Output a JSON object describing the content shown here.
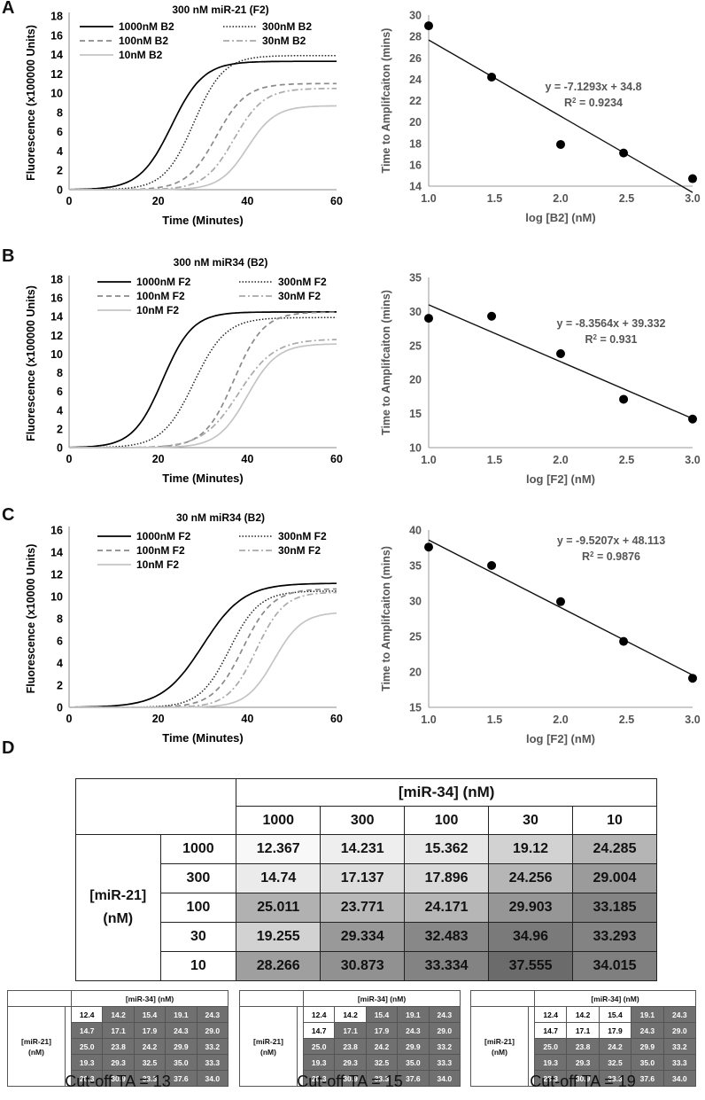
{
  "panels": {
    "A": {
      "letter": "A",
      "curve": {
        "title": "300 nM miR-21 (F2)",
        "ylabel": "Fluorescence (x100000 Units)",
        "xlabel": "Time (Minutes)",
        "yticks": [
          "0",
          "2",
          "4",
          "6",
          "8",
          "10",
          "12",
          "14",
          "16",
          "18"
        ],
        "xticks": [
          "0",
          "20",
          "40",
          "60"
        ],
        "legend": [
          "1000nM B2",
          "300nM B2",
          "100nM B2",
          "30nM B2",
          "10nM B2"
        ]
      },
      "scatter": {
        "ylabel": "Time to Amplifcaiton (mins)",
        "xlabel": "log [B2] (nM)",
        "yticks": [
          "14",
          "16",
          "18",
          "20",
          "22",
          "24",
          "26",
          "28",
          "30"
        ],
        "xticks": [
          "1.0",
          "1.5",
          "2.0",
          "2.5",
          "3.0"
        ],
        "equation": "y = -7.1293x + 34.8",
        "r2_label": "R",
        "r2_value": " = 0.9234"
      }
    },
    "B": {
      "letter": "B",
      "curve": {
        "title": "300 nM miR34 (B2)",
        "ylabel": "Fluorescence (x100000 Units)",
        "xlabel": "Time (Minutes)",
        "yticks": [
          "0",
          "2",
          "4",
          "6",
          "8",
          "10",
          "12",
          "14",
          "16",
          "18"
        ],
        "xticks": [
          "0",
          "20",
          "40",
          "60"
        ],
        "legend": [
          "1000nM F2",
          "300nM F2",
          "100nM F2",
          "30nM F2",
          "10nM F2"
        ]
      },
      "scatter": {
        "ylabel": "Time to Amplifcaiton (mins)",
        "xlabel": "log [F2] (nM)",
        "yticks": [
          "10",
          "15",
          "20",
          "25",
          "30",
          "35"
        ],
        "xticks": [
          "1.0",
          "1.5",
          "2.0",
          "2.5",
          "3.0"
        ],
        "equation": "y = -8.3564x + 39.332",
        "r2_label": "R",
        "r2_value": " = 0.931"
      }
    },
    "C": {
      "letter": "C",
      "curve": {
        "title": "30 nM miR34 (B2)",
        "ylabel": "Fluorescence (x10000 Units)",
        "xlabel": "Time (Minutes)",
        "yticks": [
          "0",
          "2",
          "4",
          "6",
          "8",
          "10",
          "12",
          "14",
          "16"
        ],
        "xticks": [
          "0",
          "20",
          "40",
          "60"
        ],
        "legend": [
          "1000nM F2",
          "300nM F2",
          "100nM F2",
          "30nM F2",
          "10nM F2"
        ]
      },
      "scatter": {
        "ylabel": "Time to Amplifcaiton (mins)",
        "xlabel": "log [F2] (nM)",
        "yticks": [
          "15",
          "20",
          "25",
          "30",
          "35",
          "40"
        ],
        "xticks": [
          "1.0",
          "1.5",
          "2.0",
          "2.5",
          "3.0"
        ],
        "equation": "y = -9.5207x + 48.113",
        "r2_label": "R",
        "r2_value": " = 0.9876"
      }
    },
    "D": {
      "letter": "D",
      "col_header": "[miR-34] (nM)",
      "row_header": "[miR-21] (nM)",
      "row_header_line1": "[miR-21]",
      "row_header_line2": "(nM)",
      "cols": [
        "1000",
        "300",
        "100",
        "30",
        "10"
      ],
      "rows": [
        "1000",
        "300",
        "100",
        "30",
        "10"
      ],
      "cells": [
        [
          "12.367",
          "14.231",
          "15.362",
          "19.12",
          "24.285"
        ],
        [
          "14.74",
          "17.137",
          "17.896",
          "24.256",
          "29.004"
        ],
        [
          "25.011",
          "23.771",
          "24.171",
          "29.903",
          "33.185"
        ],
        [
          "19.255",
          "29.334",
          "32.483",
          "34.96",
          "33.293"
        ],
        [
          "28.266",
          "30.873",
          "33.334",
          "37.555",
          "34.015"
        ]
      ],
      "mini": [
        {
          "cutoff_label": "Cut-off TA = 13",
          "cutoff": 13
        },
        {
          "cutoff_label": "Cut-off TA = 15",
          "cutoff": 15
        },
        {
          "cutoff_label": "Cut-off TA = 19",
          "cutoff": 19
        }
      ],
      "mini_cells": [
        [
          "12.4",
          "14.2",
          "15.4",
          "19.1",
          "24.3"
        ],
        [
          "14.7",
          "17.1",
          "17.9",
          "24.3",
          "29.0"
        ],
        [
          "25.0",
          "23.8",
          "24.2",
          "29.9",
          "33.2"
        ],
        [
          "19.3",
          "29.3",
          "32.5",
          "35.0",
          "33.3"
        ],
        [
          "28.3",
          "30.9",
          "33.3",
          "37.6",
          "34.0"
        ]
      ]
    }
  },
  "chart_data": [
    {
      "type": "line",
      "panel": "A-left",
      "title": "300 nM miR-21 (F2)",
      "xlabel": "Time (Minutes)",
      "ylabel": "Fluorescence (x100000 Units)",
      "xlim": [
        0,
        60
      ],
      "ylim": [
        0,
        18
      ],
      "series": [
        {
          "name": "1000nM B2",
          "plateau": 13.3,
          "midpoint": 23,
          "k": 0.28
        },
        {
          "name": "300nM B2",
          "plateau": 13.9,
          "midpoint": 28,
          "k": 0.3
        },
        {
          "name": "100nM B2",
          "plateau": 11.0,
          "midpoint": 33,
          "k": 0.3
        },
        {
          "name": "30nM B2",
          "plateau": 10.5,
          "midpoint": 37,
          "k": 0.3
        },
        {
          "name": "10nM B2",
          "plateau": 8.7,
          "midpoint": 40,
          "k": 0.32
        }
      ]
    },
    {
      "type": "scatter",
      "panel": "A-right",
      "xlabel": "log [B2] (nM)",
      "ylabel": "Time to Amplifcaiton (mins)",
      "xlim": [
        1.0,
        3.0
      ],
      "ylim": [
        14,
        30
      ],
      "x": [
        1.0,
        1.477,
        2.0,
        2.477,
        3.0
      ],
      "y": [
        29.0,
        24.2,
        17.9,
        17.1,
        14.7
      ],
      "trendline": {
        "slope": -7.1293,
        "intercept": 34.8,
        "r2": 0.9234
      }
    },
    {
      "type": "line",
      "panel": "B-left",
      "title": "300 nM miR34 (B2)",
      "xlabel": "Time (Minutes)",
      "ylabel": "Fluorescence (x100000 Units)",
      "xlim": [
        0,
        60
      ],
      "ylim": [
        0,
        18
      ],
      "series": [
        {
          "name": "1000nM F2",
          "plateau": 14.5,
          "midpoint": 21,
          "k": 0.3
        },
        {
          "name": "300nM F2",
          "plateau": 13.9,
          "midpoint": 28,
          "k": 0.28
        },
        {
          "name": "100nM F2",
          "plateau": 14.5,
          "midpoint": 37,
          "k": 0.3
        },
        {
          "name": "30nM F2",
          "plateau": 11.6,
          "midpoint": 38,
          "k": 0.25
        },
        {
          "name": "10nM F2",
          "plateau": 11.1,
          "midpoint": 40,
          "k": 0.3
        }
      ]
    },
    {
      "type": "scatter",
      "panel": "B-right",
      "xlabel": "log [F2] (nM)",
      "ylabel": "Time to Amplifcaiton (mins)",
      "xlim": [
        1.0,
        3.0
      ],
      "ylim": [
        10,
        35
      ],
      "x": [
        1.0,
        1.477,
        2.0,
        2.477,
        3.0
      ],
      "y": [
        29.0,
        29.3,
        23.8,
        17.1,
        14.2
      ],
      "trendline": {
        "slope": -8.3564,
        "intercept": 39.332,
        "r2": 0.931
      }
    },
    {
      "type": "line",
      "panel": "C-left",
      "title": "30 nM miR34 (B2)",
      "xlabel": "Time (Minutes)",
      "ylabel": "Fluorescence (x10000 Units)",
      "xlim": [
        0,
        60
      ],
      "ylim": [
        0,
        16
      ],
      "series": [
        {
          "name": "1000nM F2",
          "plateau": 11.2,
          "midpoint": 30,
          "k": 0.22
        },
        {
          "name": "300nM F2",
          "plateau": 10.5,
          "midpoint": 36,
          "k": 0.3
        },
        {
          "name": "100nM F2",
          "plateau": 10.7,
          "midpoint": 39,
          "k": 0.3
        },
        {
          "name": "30nM F2",
          "plateau": 10.4,
          "midpoint": 42,
          "k": 0.32
        },
        {
          "name": "10nM F2",
          "plateau": 8.6,
          "midpoint": 46,
          "k": 0.32
        }
      ]
    },
    {
      "type": "scatter",
      "panel": "C-right",
      "xlabel": "log [F2] (nM)",
      "ylabel": "Time to Amplifcaiton (mins)",
      "xlim": [
        1.0,
        3.0
      ],
      "ylim": [
        15,
        40
      ],
      "x": [
        1.0,
        1.477,
        2.0,
        2.477,
        3.0
      ],
      "y": [
        37.6,
        35.0,
        29.9,
        24.3,
        19.1
      ],
      "trendline": {
        "slope": -9.5207,
        "intercept": 48.113,
        "r2": 0.9876
      }
    },
    {
      "type": "table",
      "panel": "D",
      "columns": [
        "1000",
        "300",
        "100",
        "30",
        "10"
      ],
      "rows": [
        "1000",
        "300",
        "100",
        "30",
        "10"
      ],
      "values": [
        [
          12.367,
          14.231,
          15.362,
          19.12,
          24.285
        ],
        [
          14.74,
          17.137,
          17.896,
          24.256,
          29.004
        ],
        [
          25.011,
          23.771,
          24.171,
          29.903,
          33.185
        ],
        [
          19.255,
          29.334,
          32.483,
          34.96,
          33.293
        ],
        [
          28.266,
          30.873,
          33.334,
          37.555,
          34.015
        ]
      ]
    }
  ]
}
